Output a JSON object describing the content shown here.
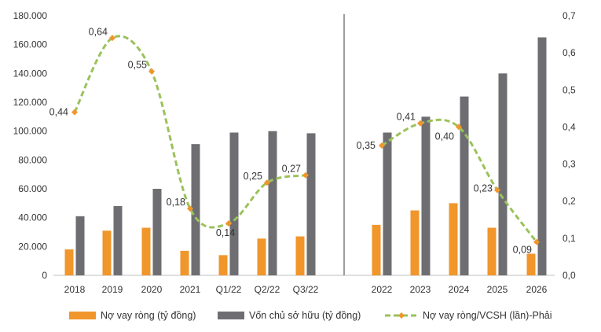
{
  "chart_data": {
    "type": "bar",
    "title": "",
    "xlabel": "",
    "ylabel": "",
    "categories": [
      "2018",
      "2019",
      "2020",
      "2021",
      "Q1/22",
      "Q2/22",
      "Q3/22",
      "2022",
      "2023",
      "2024",
      "2025",
      "2026"
    ],
    "ylim_left": [
      0,
      180000
    ],
    "ylim_right": [
      0,
      0.7
    ],
    "left_ticks": [
      "0",
      "20.000",
      "40.000",
      "60.000",
      "80.000",
      "100.000",
      "120.000",
      "140.000",
      "160.000",
      "180.000"
    ],
    "right_ticks": [
      "0,0",
      "0,1",
      "0,2",
      "0,3",
      "0,4",
      "0,5",
      "0,6",
      "0,7"
    ],
    "series": [
      {
        "name": "Nợ vay ròng (tỷ đồng)",
        "type": "bar",
        "color": "#F0962B",
        "values": [
          18000,
          31000,
          33000,
          17000,
          14000,
          25500,
          27000,
          35000,
          45000,
          50000,
          33000,
          15000
        ]
      },
      {
        "name": "Vốn chủ sở hữu (tỷ đồng)",
        "type": "bar",
        "color": "#6E6E72",
        "values": [
          41000,
          48000,
          60000,
          91000,
          99000,
          100000,
          98500,
          99000,
          110000,
          124000,
          140000,
          165000
        ]
      },
      {
        "name": "Nợ vay ròng/VCSH (lần)-Phải",
        "type": "line",
        "axis": "right",
        "color": "#9BC25B",
        "marker_color": "#F0962B",
        "values": [
          0.44,
          0.64,
          0.55,
          0.18,
          0.14,
          0.25,
          0.27,
          0.35,
          0.41,
          0.4,
          0.23,
          0.09
        ],
        "labels": [
          "0,44",
          "0,64",
          "0,55",
          "0,18",
          "0,14",
          "0,25",
          "0,27",
          "0,35",
          "0,41",
          "0,40",
          "0,23",
          "0,09"
        ]
      }
    ],
    "legend": [
      "Nợ vay ròng (tỷ đồng)",
      "Vốn chủ sở hữu (tỷ đồng)",
      "Nợ vay ròng/VCSH (lần)-Phải"
    ],
    "legend_position": "bottom",
    "divider_between": [
      "Q3/22",
      "2022"
    ],
    "grid": false
  }
}
